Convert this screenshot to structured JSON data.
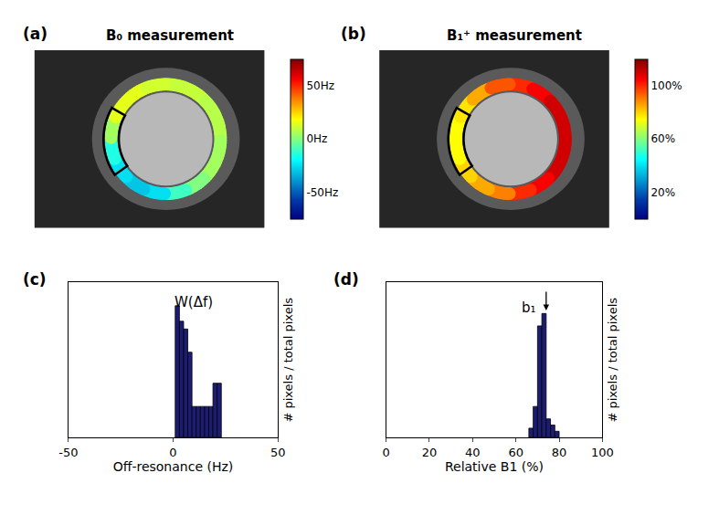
{
  "chart_data": [
    {
      "type": "ring_map",
      "panel": "(a)",
      "title": "B₀ measurement",
      "color": "Jet",
      "values": [
        10,
        10,
        8,
        8,
        5,
        5,
        0,
        -10,
        -25,
        -30,
        -25,
        -15,
        5,
        15,
        15,
        12
      ],
      "colorbar": {
        "range": [
          -75,
          75
        ],
        "ticks": [
          {
            "value": 50,
            "label": "50Hz"
          },
          {
            "value": 0,
            "label": "0Hz"
          },
          {
            "value": -50,
            "label": "-50Hz"
          }
        ]
      }
    },
    {
      "type": "ring_map",
      "panel": "(b)",
      "title": "B₁⁺ measurement",
      "color": "Jet",
      "values": [
        100,
        105,
        110,
        110,
        110,
        110,
        105,
        100,
        90,
        85,
        80,
        75,
        75,
        78,
        85,
        95
      ],
      "colorbar": {
        "range": [
          0,
          120
        ],
        "ticks": [
          {
            "value": 20,
            "label": "20%"
          },
          {
            "value": 60,
            "label": "60%"
          },
          {
            "value": 100,
            "label": "100%"
          }
        ]
      }
    },
    {
      "type": "histogram",
      "panel": "(c)",
      "color": "#1c1c72",
      "bins": [
        1,
        3,
        5,
        7,
        9,
        11,
        13,
        15,
        17,
        19,
        21,
        23
      ],
      "values": [
        0.17,
        0.15,
        0.14,
        0.11,
        0.04,
        0.04,
        0.04,
        0.04,
        0.04,
        0.07,
        0.07
      ],
      "x_label": "Off-resonance (Hz)",
      "y_label": "# pixels / total pixels",
      "xlim": [
        -50,
        50
      ],
      "xticks": [
        -50,
        0,
        50
      ],
      "ylim": [
        0,
        0.2
      ],
      "tick_labels": "x",
      "annotations": [
        {
          "text": "W(Δf)",
          "x": 10,
          "y": 0.175
        }
      ]
    },
    {
      "type": "histogram",
      "panel": "(d)",
      "color": "#1c1c72",
      "bins": [
        66,
        68,
        70,
        72,
        74,
        76,
        78,
        80
      ],
      "values": [
        0.03,
        0.1,
        0.36,
        0.4,
        0.06,
        0.04,
        0.02
      ],
      "x_label": "Relative B1 (%)",
      "y_label": "# pixels / total pixels",
      "xlim": [
        0,
        100
      ],
      "xticks": [
        0,
        20,
        40,
        60,
        80,
        100
      ],
      "ylim": [
        0,
        0.5
      ],
      "tick_labels": "x",
      "annotations": [
        {
          "text": "b₁",
          "x": 66,
          "y": 0.42
        }
      ]
    }
  ]
}
